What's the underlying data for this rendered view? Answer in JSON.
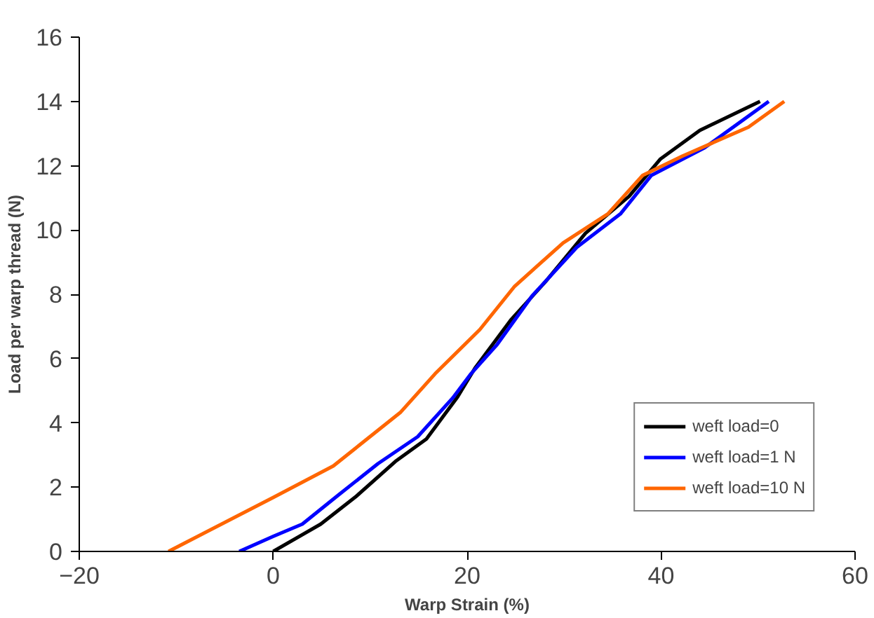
{
  "chart_data": {
    "type": "line",
    "xlabel": "Warp Strain (%)",
    "ylabel": "Load per warp thread (N)",
    "xlim": [
      -20,
      60
    ],
    "xticks": [
      -20,
      0,
      20,
      40,
      60
    ],
    "ylim": [
      0,
      16
    ],
    "yticks": [
      0,
      2,
      4,
      6,
      8,
      10,
      12,
      14,
      16
    ],
    "grid": false,
    "legend": "bottom right",
    "marker": "none",
    "line_style": "solid",
    "series": [
      {
        "name": "weft load=0",
        "color": "#000000",
        "x": [
          0,
          4.9,
          8.5,
          12.6,
          15.8,
          19.0,
          20.8,
          24.5,
          28.1,
          32.2,
          36.7,
          39.9,
          44.0,
          50.2
        ],
        "values": [
          0,
          0.85,
          1.7,
          2.8,
          3.5,
          4.8,
          5.7,
          7.2,
          8.4,
          9.9,
          11.05,
          12.2,
          13.1,
          14.0
        ]
      },
      {
        "name": "weft load=1 N",
        "color": "#0000ff",
        "x": [
          -3.5,
          0,
          3.0,
          6.7,
          10.8,
          14.9,
          18.5,
          20.4,
          23.1,
          26.7,
          31.3,
          35.8,
          39.0,
          44.5,
          51.1
        ],
        "values": [
          0,
          0.47,
          0.85,
          1.75,
          2.73,
          3.57,
          4.77,
          5.53,
          6.44,
          7.95,
          9.46,
          10.5,
          11.7,
          12.56,
          14.0
        ]
      },
      {
        "name": "weft load=10 N",
        "color": "#ff6600",
        "x": [
          -10.8,
          0,
          6.2,
          13.1,
          16.7,
          21.3,
          24.9,
          29.9,
          34.5,
          38.1,
          42.2,
          49.0,
          52.7
        ],
        "values": [
          0,
          1.68,
          2.66,
          4.32,
          5.53,
          6.9,
          8.25,
          9.6,
          10.5,
          11.7,
          12.3,
          13.2,
          14.0
        ]
      }
    ]
  }
}
